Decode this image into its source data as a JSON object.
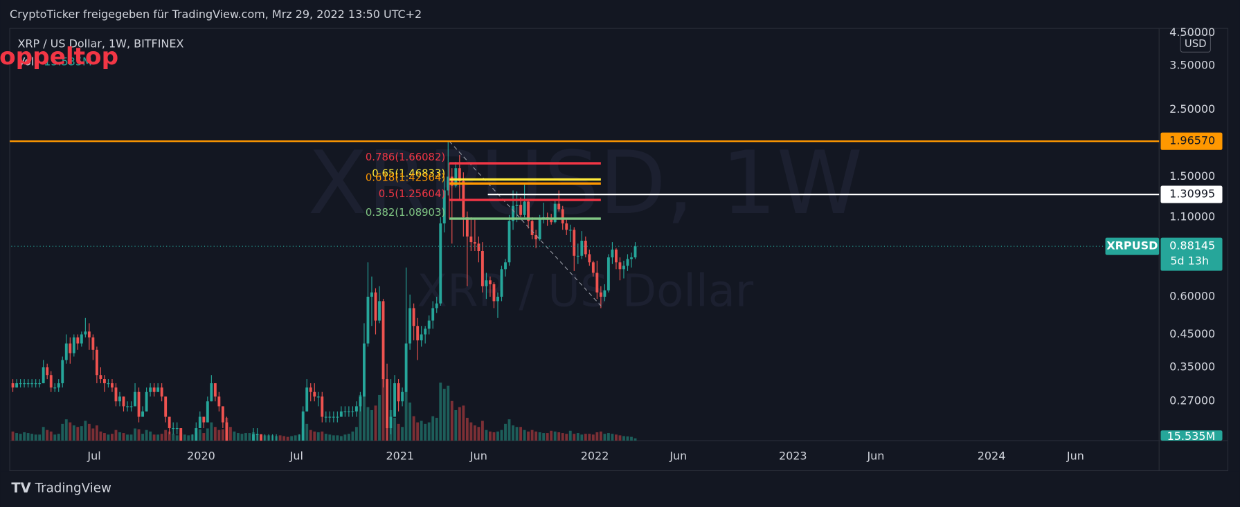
{
  "header": {
    "text": "CryptoTicker freigegeben für TradingView.com, Mrz 29, 2022 13:50 UTC+2"
  },
  "chart_data": {
    "type": "candlestick",
    "title": "XRP / US Dollar, 1W, BITFINEX",
    "currency": "USD",
    "watermark": "XRPUSD, 1W",
    "watermark_subtitle": "XRP / US Dollar",
    "annotation": "Doppeltop",
    "log_scale": true,
    "grid": false,
    "up_color": "#26a69a",
    "down_color": "#ef5350",
    "xlim": [
      -0.4,
      300.2
    ],
    "xticks": [
      {
        "value": 21.3,
        "label": "Jul"
      },
      {
        "value": 49.3,
        "label": "2020"
      },
      {
        "value": 74.3,
        "label": "Jul"
      },
      {
        "value": 101.4,
        "label": "2021"
      },
      {
        "value": 122,
        "label": "Jun"
      },
      {
        "value": 152.4,
        "label": "2022"
      },
      {
        "value": 174.3,
        "label": "Jun"
      },
      {
        "value": 204.3,
        "label": "2023"
      },
      {
        "value": 226,
        "label": "Jun"
      },
      {
        "value": 256.3,
        "label": "2024"
      },
      {
        "value": 278.3,
        "label": "Jun"
      }
    ],
    "ylim": [
      0.2,
      4.65
    ],
    "yticks": [
      {
        "value": 0.27,
        "label": "0.27000"
      },
      {
        "value": 0.35,
        "label": "0.35000"
      },
      {
        "value": 0.45,
        "label": "0.45000"
      },
      {
        "value": 0.6,
        "label": "0.60000"
      },
      {
        "value": 1.1,
        "label": "1.10000"
      },
      {
        "value": 1.5,
        "label": "1.50000"
      },
      {
        "value": 2.5,
        "label": "2.50000"
      },
      {
        "value": 3.5,
        "label": "3.50000"
      },
      {
        "value": 4.5,
        "label": "4.50000"
      }
    ],
    "ohlc": [
      [
        0.31,
        0.32,
        0.29,
        0.3
      ],
      [
        0.3,
        0.32,
        0.3,
        0.31
      ],
      [
        0.31,
        0.32,
        0.3,
        0.31
      ],
      [
        0.31,
        0.32,
        0.3,
        0.31
      ],
      [
        0.31,
        0.32,
        0.3,
        0.31
      ],
      [
        0.31,
        0.32,
        0.3,
        0.31
      ],
      [
        0.31,
        0.32,
        0.3,
        0.31
      ],
      [
        0.31,
        0.32,
        0.3,
        0.31
      ],
      [
        0.31,
        0.37,
        0.31,
        0.35
      ],
      [
        0.35,
        0.36,
        0.32,
        0.33
      ],
      [
        0.33,
        0.34,
        0.29,
        0.3
      ],
      [
        0.3,
        0.31,
        0.29,
        0.3
      ],
      [
        0.3,
        0.32,
        0.29,
        0.31
      ],
      [
        0.31,
        0.38,
        0.3,
        0.37
      ],
      [
        0.37,
        0.45,
        0.36,
        0.42
      ],
      [
        0.42,
        0.44,
        0.36,
        0.39
      ],
      [
        0.39,
        0.45,
        0.38,
        0.44
      ],
      [
        0.44,
        0.45,
        0.4,
        0.42
      ],
      [
        0.42,
        0.46,
        0.41,
        0.45
      ],
      [
        0.45,
        0.51,
        0.44,
        0.46
      ],
      [
        0.46,
        0.49,
        0.4,
        0.44
      ],
      [
        0.44,
        0.45,
        0.37,
        0.4
      ],
      [
        0.4,
        0.41,
        0.31,
        0.33
      ],
      [
        0.33,
        0.35,
        0.31,
        0.32
      ],
      [
        0.32,
        0.33,
        0.29,
        0.31
      ],
      [
        0.31,
        0.32,
        0.3,
        0.31
      ],
      [
        0.31,
        0.32,
        0.29,
        0.3
      ],
      [
        0.3,
        0.31,
        0.26,
        0.27
      ],
      [
        0.27,
        0.29,
        0.26,
        0.28
      ],
      [
        0.28,
        0.28,
        0.25,
        0.26
      ],
      [
        0.26,
        0.27,
        0.25,
        0.26
      ],
      [
        0.26,
        0.27,
        0.25,
        0.26
      ],
      [
        0.26,
        0.31,
        0.26,
        0.29
      ],
      [
        0.29,
        0.3,
        0.23,
        0.24
      ],
      [
        0.24,
        0.26,
        0.24,
        0.25
      ],
      [
        0.25,
        0.3,
        0.25,
        0.29
      ],
      [
        0.29,
        0.31,
        0.28,
        0.3
      ],
      [
        0.3,
        0.31,
        0.28,
        0.29
      ],
      [
        0.29,
        0.31,
        0.29,
        0.3
      ],
      [
        0.3,
        0.31,
        0.27,
        0.28
      ],
      [
        0.28,
        0.28,
        0.23,
        0.24
      ],
      [
        0.24,
        0.24,
        0.21,
        0.22
      ],
      [
        0.22,
        0.23,
        0.21,
        0.22
      ],
      [
        0.22,
        0.23,
        0.21,
        0.22
      ],
      [
        0.22,
        0.22,
        0.18,
        0.19
      ],
      [
        0.19,
        0.2,
        0.18,
        0.19
      ],
      [
        0.19,
        0.2,
        0.18,
        0.19
      ],
      [
        0.19,
        0.21,
        0.19,
        0.2
      ],
      [
        0.2,
        0.23,
        0.2,
        0.22
      ],
      [
        0.22,
        0.25,
        0.22,
        0.24
      ],
      [
        0.24,
        0.24,
        0.22,
        0.23
      ],
      [
        0.23,
        0.28,
        0.23,
        0.27
      ],
      [
        0.27,
        0.33,
        0.27,
        0.31
      ],
      [
        0.31,
        0.31,
        0.27,
        0.28
      ],
      [
        0.28,
        0.29,
        0.25,
        0.26
      ],
      [
        0.26,
        0.26,
        0.22,
        0.23
      ],
      [
        0.23,
        0.24,
        0.11,
        0.17
      ],
      [
        0.17,
        0.18,
        0.14,
        0.15
      ],
      [
        0.15,
        0.18,
        0.15,
        0.17
      ],
      [
        0.17,
        0.18,
        0.16,
        0.17
      ],
      [
        0.17,
        0.19,
        0.17,
        0.18
      ],
      [
        0.18,
        0.2,
        0.18,
        0.19
      ],
      [
        0.19,
        0.2,
        0.18,
        0.19
      ],
      [
        0.19,
        0.22,
        0.19,
        0.21
      ],
      [
        0.21,
        0.22,
        0.19,
        0.21
      ],
      [
        0.21,
        0.21,
        0.19,
        0.2
      ],
      [
        0.2,
        0.21,
        0.19,
        0.2
      ],
      [
        0.2,
        0.21,
        0.19,
        0.2
      ],
      [
        0.2,
        0.21,
        0.19,
        0.2
      ],
      [
        0.2,
        0.21,
        0.19,
        0.2
      ],
      [
        0.2,
        0.2,
        0.18,
        0.19
      ],
      [
        0.19,
        0.19,
        0.17,
        0.18
      ],
      [
        0.18,
        0.18,
        0.17,
        0.17
      ],
      [
        0.17,
        0.18,
        0.17,
        0.18
      ],
      [
        0.18,
        0.19,
        0.17,
        0.18
      ],
      [
        0.18,
        0.21,
        0.18,
        0.2
      ],
      [
        0.2,
        0.26,
        0.2,
        0.25
      ],
      [
        0.25,
        0.32,
        0.25,
        0.3
      ],
      [
        0.3,
        0.31,
        0.27,
        0.29
      ],
      [
        0.29,
        0.31,
        0.27,
        0.28
      ],
      [
        0.28,
        0.29,
        0.26,
        0.28
      ],
      [
        0.28,
        0.29,
        0.23,
        0.24
      ],
      [
        0.24,
        0.25,
        0.23,
        0.24
      ],
      [
        0.24,
        0.25,
        0.23,
        0.24
      ],
      [
        0.24,
        0.25,
        0.23,
        0.24
      ],
      [
        0.24,
        0.25,
        0.23,
        0.24
      ],
      [
        0.24,
        0.26,
        0.24,
        0.25
      ],
      [
        0.25,
        0.26,
        0.24,
        0.25
      ],
      [
        0.25,
        0.26,
        0.24,
        0.25
      ],
      [
        0.25,
        0.26,
        0.24,
        0.25
      ],
      [
        0.25,
        0.27,
        0.24,
        0.26
      ],
      [
        0.26,
        0.29,
        0.25,
        0.28
      ],
      [
        0.28,
        0.49,
        0.28,
        0.42
      ],
      [
        0.42,
        0.78,
        0.41,
        0.6
      ],
      [
        0.6,
        0.7,
        0.48,
        0.62
      ],
      [
        0.62,
        0.64,
        0.45,
        0.5
      ],
      [
        0.5,
        0.65,
        0.49,
        0.58
      ],
      [
        0.58,
        0.59,
        0.3,
        0.32
      ],
      [
        0.32,
        0.36,
        0.17,
        0.22
      ],
      [
        0.22,
        0.32,
        0.21,
        0.24
      ],
      [
        0.24,
        0.33,
        0.24,
        0.31
      ],
      [
        0.31,
        0.32,
        0.25,
        0.27
      ],
      [
        0.27,
        0.3,
        0.26,
        0.29
      ],
      [
        0.29,
        0.75,
        0.29,
        0.42
      ],
      [
        0.42,
        0.61,
        0.4,
        0.55
      ],
      [
        0.55,
        0.57,
        0.43,
        0.48
      ],
      [
        0.48,
        0.51,
        0.37,
        0.43
      ],
      [
        0.43,
        0.48,
        0.41,
        0.45
      ],
      [
        0.45,
        0.48,
        0.42,
        0.47
      ],
      [
        0.47,
        0.52,
        0.45,
        0.5
      ],
      [
        0.5,
        0.58,
        0.47,
        0.55
      ],
      [
        0.55,
        0.6,
        0.53,
        0.57
      ],
      [
        0.57,
        1.1,
        0.56,
        1.05
      ],
      [
        1.05,
        1.49,
        0.98,
        1.35
      ],
      [
        1.35,
        1.96,
        1.3,
        1.5
      ],
      [
        1.5,
        1.6,
        0.9,
        1.4
      ],
      [
        1.4,
        1.68,
        1.38,
        1.6
      ],
      [
        1.6,
        1.77,
        1.25,
        1.45
      ],
      [
        1.45,
        1.55,
        0.95,
        1.1
      ],
      [
        1.1,
        1.15,
        0.65,
        0.95
      ],
      [
        0.95,
        1.1,
        0.85,
        0.91
      ],
      [
        0.91,
        1.08,
        0.85,
        0.9
      ],
      [
        0.9,
        0.95,
        0.78,
        0.85
      ],
      [
        0.85,
        0.91,
        0.62,
        0.65
      ],
      [
        0.65,
        0.72,
        0.59,
        0.68
      ],
      [
        0.68,
        0.7,
        0.6,
        0.66
      ],
      [
        0.66,
        0.67,
        0.55,
        0.58
      ],
      [
        0.58,
        0.62,
        0.51,
        0.6
      ],
      [
        0.6,
        0.76,
        0.58,
        0.74
      ],
      [
        0.74,
        0.8,
        0.7,
        0.78
      ],
      [
        0.78,
        1.12,
        0.76,
        1.07
      ],
      [
        1.07,
        1.35,
        1.0,
        1.2
      ],
      [
        1.2,
        1.34,
        1.06,
        1.21
      ],
      [
        1.21,
        1.28,
        1.1,
        1.12
      ],
      [
        1.12,
        1.41,
        1.1,
        1.24
      ],
      [
        1.24,
        1.25,
        1.01,
        1.07
      ],
      [
        1.07,
        1.1,
        0.93,
        0.96
      ],
      [
        0.96,
        1.0,
        0.87,
        0.93
      ],
      [
        0.93,
        1.12,
        0.92,
        1.09
      ],
      [
        1.09,
        1.23,
        1.05,
        1.1
      ],
      [
        1.1,
        1.14,
        1.03,
        1.08
      ],
      [
        1.08,
        1.13,
        1.04,
        1.06
      ],
      [
        1.06,
        1.25,
        1.05,
        1.22
      ],
      [
        1.22,
        1.35,
        1.15,
        1.17
      ],
      [
        1.17,
        1.2,
        1.0,
        1.05
      ],
      [
        1.05,
        1.08,
        0.96,
        1.0
      ],
      [
        1.0,
        1.04,
        0.91,
        1.0
      ],
      [
        1.0,
        1.02,
        0.73,
        0.82
      ],
      [
        0.82,
        0.9,
        0.77,
        0.82
      ],
      [
        0.82,
        0.99,
        0.8,
        0.92
      ],
      [
        0.92,
        0.95,
        0.81,
        0.83
      ],
      [
        0.83,
        0.86,
        0.76,
        0.78
      ],
      [
        0.78,
        0.79,
        0.7,
        0.72
      ],
      [
        0.72,
        0.79,
        0.59,
        0.62
      ],
      [
        0.62,
        0.65,
        0.55,
        0.6
      ],
      [
        0.6,
        0.66,
        0.58,
        0.63
      ],
      [
        0.63,
        0.83,
        0.62,
        0.81
      ],
      [
        0.81,
        0.91,
        0.77,
        0.86
      ],
      [
        0.86,
        0.87,
        0.74,
        0.78
      ],
      [
        0.78,
        0.81,
        0.68,
        0.74
      ],
      [
        0.74,
        0.79,
        0.69,
        0.76
      ],
      [
        0.76,
        0.83,
        0.73,
        0.8
      ],
      [
        0.8,
        0.84,
        0.75,
        0.81
      ],
      [
        0.81,
        0.91,
        0.8,
        0.88145
      ]
    ],
    "volume": {
      "name": "Vol",
      "up_color": "#1d5e5a",
      "down_color": "#7c2f35",
      "value_label": "15.535M",
      "values": [
        60,
        50,
        45,
        55,
        50,
        45,
        40,
        40,
        90,
        70,
        60,
        40,
        45,
        110,
        140,
        120,
        100,
        90,
        95,
        130,
        110,
        80,
        100,
        60,
        50,
        40,
        45,
        70,
        55,
        50,
        40,
        40,
        80,
        75,
        45,
        70,
        60,
        40,
        40,
        45,
        70,
        60,
        45,
        35,
        50,
        40,
        35,
        40,
        55,
        75,
        50,
        80,
        120,
        90,
        70,
        75,
        150,
        90,
        60,
        50,
        45,
        50,
        50,
        55,
        45,
        40,
        35,
        35,
        35,
        30,
        35,
        30,
        25,
        30,
        35,
        40,
        80,
        110,
        70,
        60,
        55,
        60,
        45,
        40,
        35,
        35,
        30,
        40,
        45,
        60,
        90,
        300,
        330,
        220,
        200,
        230,
        300,
        440,
        380,
        200,
        150,
        110,
        90,
        320,
        250,
        160,
        120,
        130,
        110,
        120,
        160,
        150,
        380,
        340,
        360,
        260,
        200,
        220,
        230,
        150,
        120,
        100,
        90,
        130,
        70,
        60,
        55,
        60,
        70,
        110,
        140,
        100,
        90,
        90,
        70,
        60,
        70,
        60,
        55,
        50,
        50,
        65,
        60,
        55,
        50,
        45,
        65,
        45,
        50,
        40,
        45,
        45,
        40,
        55,
        60,
        45,
        50,
        45,
        40,
        35,
        30,
        28,
        25,
        15.535
      ]
    },
    "horizontal_lines": [
      {
        "value": 1.9657,
        "label": "1.96570",
        "color": "#ff9800"
      },
      {
        "value": 1.30995,
        "label": "1.30995",
        "color": "#ffffff",
        "x_from": 124.4
      }
    ],
    "last_price": {
      "name": "XRPUSD",
      "value": 0.88145,
      "label": "0.88145",
      "countdown": "5d 13h",
      "color": "#26a69a"
    },
    "fib_x": [
      114.3,
      154.0
    ],
    "fibonacci": [
      {
        "label": "0.786(1.66082)",
        "value": 1.66082,
        "color": "#f23645"
      },
      {
        "label": "0.65(1.46833)",
        "value": 1.46833,
        "color": "#ffeb3b"
      },
      {
        "label": "0.618(1.42364)",
        "value": 1.42364,
        "color": "#ff9800"
      },
      {
        "label": "0.5(1.25604)",
        "value": 1.25604,
        "color": "#f23645"
      },
      {
        "label": "0.382(1.08903)",
        "value": 1.08903,
        "color": "#81c784"
      }
    ],
    "trend_line": {
      "x": [
        114.3,
        154.4
      ],
      "y": [
        1.9657,
        0.553
      ]
    }
  },
  "footer": {
    "brand": "TradingView"
  }
}
